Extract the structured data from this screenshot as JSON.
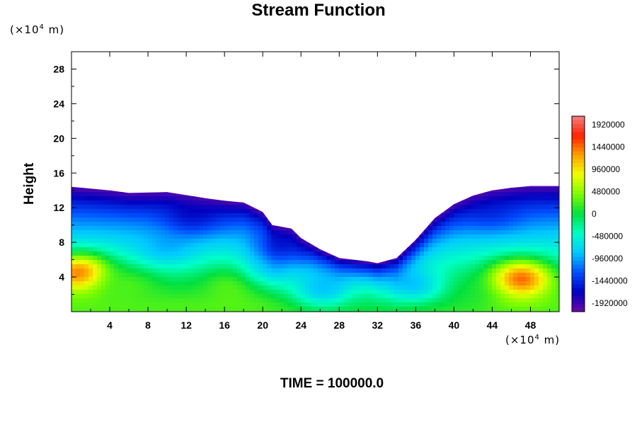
{
  "title": "Stream Function",
  "time_label": "TIME = 100000.0",
  "y_unit": {
    "prefix": "(×10",
    "exp": "4",
    "suffix": " m)"
  },
  "x_unit": {
    "prefix": "(×10",
    "exp": "4",
    "suffix": " m)"
  },
  "chart_data": {
    "type": "heatmap",
    "title": "Stream Function",
    "ylabel": "Height",
    "xlabel": "",
    "x_unit": "×10^4 m",
    "y_unit": "×10^4 m",
    "xlim": [
      0,
      51
    ],
    "ylim": [
      0,
      30
    ],
    "x_ticks": [
      4,
      8,
      12,
      16,
      20,
      24,
      28,
      32,
      36,
      40,
      44,
      48
    ],
    "y_ticks": [
      4,
      8,
      12,
      16,
      20,
      24,
      28
    ],
    "colorbar": {
      "range": [
        -2100000,
        2100000
      ],
      "ticks": [
        1920000,
        1440000,
        960000,
        480000,
        0,
        -480000,
        -960000,
        -1440000,
        -1920000
      ],
      "tick_labels": [
        "1920000",
        "1440000",
        "960000",
        "480000",
        "0",
        "-480000",
        "-960000",
        "-1440000",
        "-1920000"
      ],
      "colors": [
        "#6a0aa8",
        "#0000c0",
        "#0050ff",
        "#00c8ff",
        "#00ffc8",
        "#00e040",
        "#7cfc00",
        "#f0ff00",
        "#ffa000",
        "#ff2000",
        "#f08080"
      ]
    },
    "top_boundary": [
      [
        0,
        14.4
      ],
      [
        4,
        14.0
      ],
      [
        6,
        13.7
      ],
      [
        10,
        13.8
      ],
      [
        14,
        13.1
      ],
      [
        16,
        12.8
      ],
      [
        18,
        12.6
      ],
      [
        20,
        11.5
      ],
      [
        21,
        10.0
      ],
      [
        23,
        9.6
      ],
      [
        24,
        8.5
      ],
      [
        26,
        7.2
      ],
      [
        28,
        6.2
      ],
      [
        31,
        5.8
      ],
      [
        32,
        5.6
      ],
      [
        34,
        6.2
      ],
      [
        36,
        8.3
      ],
      [
        38,
        10.8
      ],
      [
        40,
        12.4
      ],
      [
        42,
        13.4
      ],
      [
        44,
        14.0
      ],
      [
        46,
        14.3
      ],
      [
        48,
        14.5
      ],
      [
        51,
        14.5
      ]
    ],
    "features": [
      {
        "x": 0.8,
        "y": 4.5,
        "value": 1700000
      },
      {
        "x": 47.0,
        "y": 3.8,
        "value": 1750000
      },
      {
        "x": 17.0,
        "y": 3.0,
        "value": 400000
      },
      {
        "x": 6.0,
        "y": 3.0,
        "value": 300000
      },
      {
        "x": 31.0,
        "y": 1.0,
        "value": 200000
      },
      {
        "x": 41.0,
        "y": 1.5,
        "value": 100000
      },
      {
        "x": 10.0,
        "y": 7.5,
        "value": -900000
      },
      {
        "x": 21.0,
        "y": 5.0,
        "value": -700000
      },
      {
        "x": 26.0,
        "y": 2.5,
        "value": -800000
      },
      {
        "x": 36.0,
        "y": 3.0,
        "value": -850000
      },
      {
        "x": 12.5,
        "y": 11.0,
        "value": -1500000
      },
      {
        "x": 22.0,
        "y": 7.5,
        "value": -1450000
      },
      {
        "x": 44.0,
        "y": 11.5,
        "value": -1300000
      }
    ]
  }
}
